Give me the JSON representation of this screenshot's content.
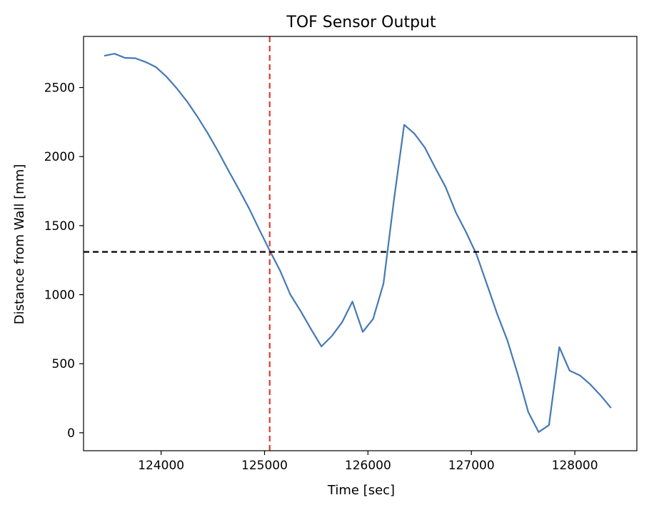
{
  "chart_data": {
    "type": "line",
    "title": "TOF Sensor Output",
    "xlabel": "Time [sec]",
    "ylabel": "Distance from Wall [mm]",
    "xlim": [
      123250,
      128600
    ],
    "ylim": [
      -130,
      2870
    ],
    "xticks": [
      124000,
      125000,
      126000,
      127000,
      128000
    ],
    "yticks": [
      0,
      500,
      1000,
      1500,
      2000,
      2500
    ],
    "grid": false,
    "series": [
      {
        "color": "#4479b3",
        "x": [
          123450,
          123550,
          123650,
          123750,
          123850,
          123950,
          124050,
          124150,
          124250,
          124350,
          124450,
          124550,
          124650,
          124750,
          124850,
          124950,
          125050,
          125150,
          125250,
          125350,
          125450,
          125550,
          125650,
          125750,
          125850,
          125950,
          126050,
          126150,
          126250,
          126350,
          126450,
          126550,
          126650,
          126750,
          126850,
          126950,
          127050,
          127150,
          127250,
          127350,
          127450,
          127550,
          127650,
          127750,
          127850,
          127950,
          128050,
          128150,
          128250,
          128350
        ],
        "y": [
          2730,
          2745,
          2715,
          2712,
          2685,
          2648,
          2580,
          2495,
          2400,
          2290,
          2170,
          2040,
          1900,
          1765,
          1625,
          1470,
          1320,
          1175,
          1000,
          880,
          750,
          625,
          700,
          800,
          950,
          730,
          825,
          1080,
          1680,
          2230,
          2165,
          2065,
          1920,
          1780,
          1595,
          1450,
          1290,
          1075,
          860,
          665,
          420,
          150,
          5,
          55,
          620,
          450,
          415,
          350,
          270,
          180
        ]
      }
    ],
    "reference_lines": [
      {
        "orientation": "vertical",
        "x": 125050,
        "color": "#e03c31",
        "style": "dashed"
      },
      {
        "orientation": "horizontal",
        "y": 1310,
        "color": "#000000",
        "style": "dashed"
      }
    ]
  }
}
